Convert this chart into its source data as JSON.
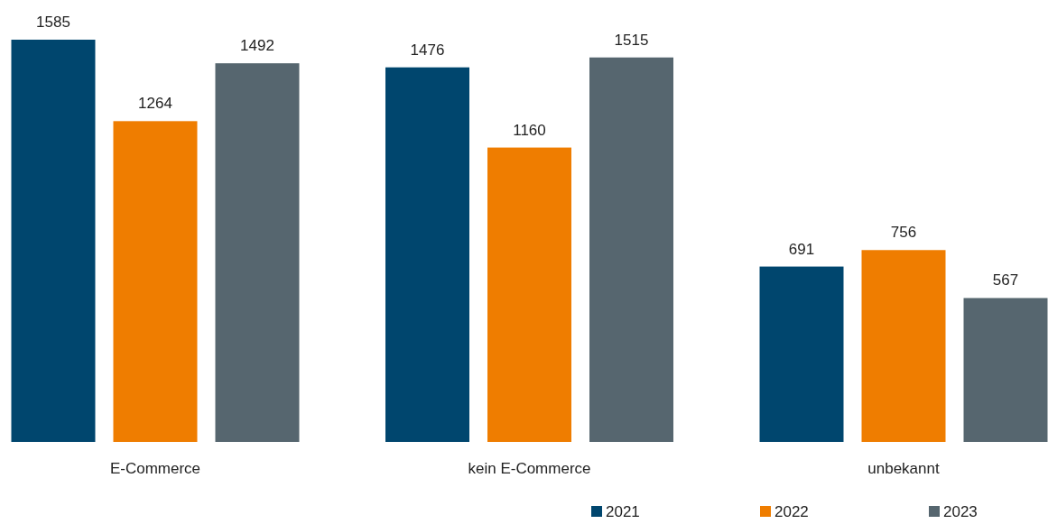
{
  "chart_data": {
    "type": "bar",
    "categories": [
      "E-Commerce",
      "kein E-Commerce",
      "unbekannt"
    ],
    "series": [
      {
        "name": "2021",
        "color": "#00466e",
        "values": [
          1585,
          1476,
          691
        ]
      },
      {
        "name": "2022",
        "color": "#ef7d00",
        "values": [
          1264,
          1160,
          756
        ]
      },
      {
        "name": "2023",
        "color": "#56666f",
        "values": [
          1492,
          1515,
          567
        ]
      }
    ],
    "data_labels": true,
    "legend": "bottom right",
    "grid": false
  }
}
